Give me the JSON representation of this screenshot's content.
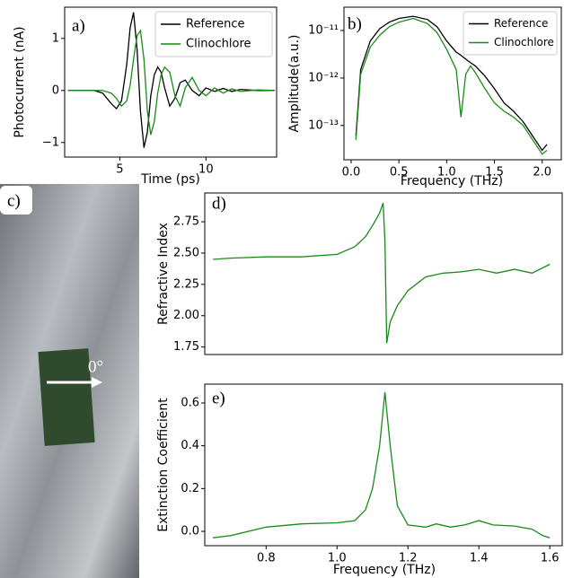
{
  "chart_data": [
    {
      "type": "line",
      "title": "a)",
      "xlabel": "Time (ps)",
      "ylabel": "Photocurrent (nA)",
      "x": [
        2,
        3,
        3.5,
        4,
        4.5,
        4.8,
        5.1,
        5.4,
        5.6,
        5.8,
        6.0,
        6.2,
        6.4,
        6.6,
        6.8,
        7.0,
        7.2,
        7.4,
        7.6,
        7.9,
        8.2,
        8.5,
        8.8,
        9.2,
        9.6,
        10,
        10.5,
        11,
        11.5,
        12,
        13,
        14
      ],
      "series": [
        {
          "name": "Reference",
          "color": "#000000",
          "values": [
            0,
            0,
            0,
            -0.05,
            -0.25,
            -0.35,
            -0.2,
            0.5,
            1.2,
            1.5,
            0.8,
            -0.4,
            -1.1,
            -0.8,
            -0.1,
            0.3,
            0.45,
            0.35,
            0.05,
            -0.3,
            -0.15,
            0.15,
            0.2,
            0.0,
            -0.1,
            0.05,
            -0.02,
            0.04,
            -0.02,
            0.02,
            0,
            0
          ]
        },
        {
          "name": "Clinochlore",
          "color": "#1a8a1a",
          "values": [
            0,
            0,
            0,
            0,
            -0.05,
            -0.15,
            -0.3,
            -0.2,
            0.1,
            0.6,
            1.05,
            1.15,
            0.6,
            -0.4,
            -0.85,
            -0.6,
            -0.05,
            0.3,
            0.45,
            0.35,
            -0.1,
            -0.3,
            0.05,
            0.25,
            0.0,
            -0.1,
            0.05,
            -0.05,
            0.03,
            -0.02,
            0.01,
            0
          ]
        }
      ],
      "xlim": [
        1.8,
        14.1
      ],
      "ylim": [
        -1.28,
        1.6
      ],
      "xticks": [
        5,
        10
      ],
      "yticks": [
        {
          "value": -1,
          "label": "−1"
        },
        0,
        1
      ],
      "legend": "upper right"
    },
    {
      "type": "line",
      "title": "b)",
      "xlabel": "Frequency (THz)",
      "ylabel": "Amplitude(a.u.)",
      "x": [
        0.05,
        0.1,
        0.2,
        0.3,
        0.4,
        0.5,
        0.65,
        0.8,
        0.9,
        1.0,
        1.1,
        1.15,
        1.2,
        1.25,
        1.3,
        1.4,
        1.5,
        1.6,
        1.7,
        1.8,
        1.9,
        2.0,
        2.05
      ],
      "series": [
        {
          "name": "Reference",
          "color": "#000000",
          "values": [
            6e-14,
            1.5e-12,
            6e-12,
            1.1e-11,
            1.5e-11,
            1.8e-11,
            2e-11,
            1.7e-11,
            1.2e-11,
            6e-12,
            3.5e-12,
            3e-12,
            2.5e-12,
            2.1e-12,
            1.8e-12,
            1.1e-12,
            6e-13,
            3e-13,
            2e-13,
            1.2e-13,
            6e-14,
            3e-14,
            4e-14
          ]
        },
        {
          "name": "Clinochlore",
          "color": "#1a8a1a",
          "values": [
            5e-14,
            1.2e-12,
            4.5e-12,
            8e-12,
            1.2e-11,
            1.5e-11,
            1.8e-11,
            1.4e-11,
            9e-12,
            4e-12,
            1.5e-12,
            1.5e-13,
            1.2e-12,
            1.8e-12,
            1.3e-12,
            6e-13,
            3e-13,
            2e-13,
            1.5e-13,
            1e-13,
            5e-14,
            2.5e-14,
            3e-14
          ]
        }
      ],
      "xlim": [
        -0.075,
        2.2
      ],
      "ylim": [
        1.9e-14,
        3.1e-11
      ],
      "ylog": true,
      "xticks": [
        {
          "value": 0,
          "label": "0.0"
        },
        0.5,
        {
          "value": 1,
          "label": "1.0"
        },
        1.5,
        {
          "value": 2,
          "label": "2.0"
        }
      ],
      "yticks": [
        {
          "value": 1e-13,
          "label": "10⁻¹³"
        },
        {
          "value": 1e-12,
          "label": "10⁻¹²"
        },
        {
          "value": 1e-11,
          "label": "10⁻¹¹"
        }
      ],
      "legend": "upper right"
    },
    {
      "type": "line",
      "title": "d)",
      "ylabel": "Refractive Index",
      "x": [
        0.65,
        0.7,
        0.8,
        0.9,
        1.0,
        1.05,
        1.08,
        1.1,
        1.12,
        1.13,
        1.135,
        1.14,
        1.15,
        1.17,
        1.2,
        1.25,
        1.3,
        1.35,
        1.4,
        1.45,
        1.5,
        1.55,
        1.6
      ],
      "series": [
        {
          "color": "#1a8a1a",
          "values": [
            2.45,
            2.46,
            2.47,
            2.47,
            2.49,
            2.55,
            2.63,
            2.72,
            2.82,
            2.9,
            2.6,
            1.78,
            1.95,
            2.08,
            2.2,
            2.31,
            2.34,
            2.35,
            2.37,
            2.34,
            2.37,
            2.34,
            2.41
          ]
        }
      ],
      "xlim": [
        0.627,
        1.635
      ],
      "ylim": [
        1.69,
        2.98
      ],
      "yticks": [
        {
          "value": 1.75,
          "label": "1.75"
        },
        {
          "value": 2,
          "label": "2.00"
        },
        {
          "value": 2.25,
          "label": "2.25"
        },
        {
          "value": 2.5,
          "label": "2.50"
        },
        {
          "value": 2.75,
          "label": "2.75"
        }
      ]
    },
    {
      "type": "line",
      "title": "e)",
      "xlabel": "Frequency (THz)",
      "ylabel": "Extinction Coefficient",
      "x": [
        0.65,
        0.7,
        0.8,
        0.9,
        1.0,
        1.05,
        1.08,
        1.1,
        1.12,
        1.135,
        1.15,
        1.17,
        1.2,
        1.25,
        1.28,
        1.32,
        1.36,
        1.4,
        1.44,
        1.5,
        1.55,
        1.58,
        1.6
      ],
      "series": [
        {
          "color": "#1a8a1a",
          "values": [
            -0.03,
            -0.02,
            0.02,
            0.035,
            0.04,
            0.05,
            0.1,
            0.2,
            0.4,
            0.65,
            0.4,
            0.12,
            0.03,
            0.02,
            0.035,
            0.02,
            0.03,
            0.05,
            0.03,
            0.025,
            0.01,
            -0.02,
            -0.03
          ]
        }
      ],
      "xlim": [
        0.627,
        1.635
      ],
      "ylim": [
        -0.067,
        0.688
      ],
      "xticks": [
        0.8,
        {
          "value": 1,
          "label": "1.0"
        },
        1.2,
        1.4,
        1.6
      ],
      "yticks": [
        {
          "value": 0,
          "label": "0.0"
        },
        0.2,
        0.4,
        0.6
      ]
    }
  ],
  "photo": {
    "label": "c)",
    "annotation": "0°"
  }
}
